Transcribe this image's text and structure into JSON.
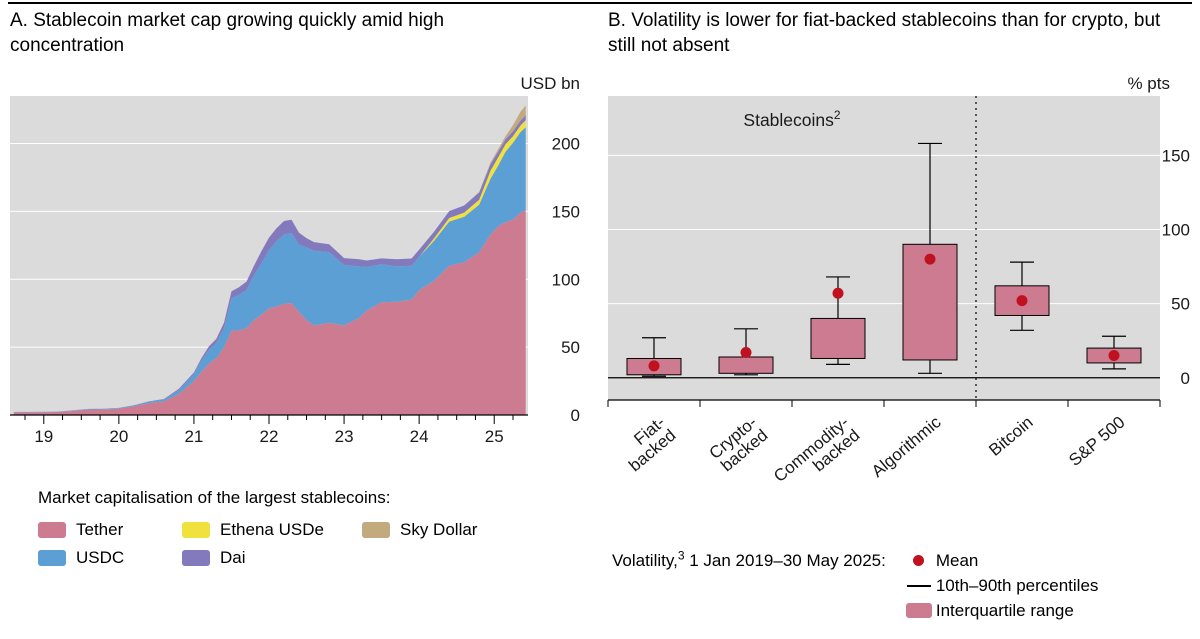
{
  "panels": {
    "a": {
      "title": "A. Stablecoin market cap growing quickly amid high concentration",
      "unit": "USD bn",
      "legend_title": "Market capitalisation of the largest stablecoins:",
      "legend": [
        {
          "label": "Tether",
          "color": "#cd7b90"
        },
        {
          "label": "USDC",
          "color": "#5b9fd4"
        },
        {
          "label": "Ethena USDe",
          "color": "#f0e13c"
        },
        {
          "label": "Dai",
          "color": "#8379bd"
        },
        {
          "label": "Sky Dollar",
          "color": "#c2aa7e"
        }
      ]
    },
    "b": {
      "title": "B. Volatility is lower for fiat-backed stablecoins than for crypto, but still not absent",
      "unit": "% pts",
      "legend_prefix": "Volatility,",
      "legend_sup": "3",
      "legend_suffix": " 1 Jan 2019–30 May 2025:",
      "legend_items": [
        {
          "marker": "mean-dot",
          "label": "Mean"
        },
        {
          "marker": "percentile-line",
          "label": "10th–90th percentiles"
        },
        {
          "marker": "iqr-box",
          "label": "Interquartile range"
        }
      ]
    }
  },
  "chart_data": [
    {
      "type": "area",
      "stacked": true,
      "title": "Stablecoin market cap growing quickly amid high concentration",
      "ylabel": "USD bn",
      "ylim": [
        0,
        235
      ],
      "yticks": [
        0,
        50,
        100,
        150,
        200
      ],
      "xlim": [
        2018.55,
        2025.45
      ],
      "xticks": [
        {
          "pos": 2019,
          "label": "19"
        },
        {
          "pos": 2020,
          "label": "20"
        },
        {
          "pos": 2021,
          "label": "21"
        },
        {
          "pos": 2022,
          "label": "22"
        },
        {
          "pos": 2023,
          "label": "23"
        },
        {
          "pos": 2024,
          "label": "24"
        },
        {
          "pos": 2025,
          "label": "25"
        }
      ],
      "x": [
        2018.6,
        2018.8,
        2019.0,
        2019.2,
        2019.4,
        2019.6,
        2019.8,
        2020.0,
        2020.2,
        2020.4,
        2020.6,
        2020.8,
        2021.0,
        2021.1,
        2021.2,
        2021.3,
        2021.4,
        2021.5,
        2021.6,
        2021.7,
        2021.8,
        2021.9,
        2022.0,
        2022.1,
        2022.2,
        2022.3,
        2022.4,
        2022.5,
        2022.6,
        2022.8,
        2023.0,
        2023.2,
        2023.3,
        2023.5,
        2023.7,
        2023.9,
        2024.0,
        2024.2,
        2024.4,
        2024.6,
        2024.8,
        2024.95,
        2025.05,
        2025.15,
        2025.25,
        2025.35,
        2025.42
      ],
      "series": [
        {
          "name": "Tether",
          "color": "#cd7b90",
          "values": [
            2,
            2,
            2,
            2.2,
            3,
            4,
            4.1,
            4.6,
            6.4,
            8.8,
            10,
            15.7,
            25,
            32,
            38,
            42,
            50,
            62,
            62.5,
            64,
            70,
            74,
            78.5,
            80,
            82,
            82.5,
            76,
            70,
            66,
            68,
            66,
            71.5,
            77,
            83,
            83.5,
            85,
            92,
            99,
            110,
            112.5,
            120,
            133,
            139,
            142,
            144,
            149,
            151
          ]
        },
        {
          "name": "USDC",
          "color": "#5b9fd4",
          "values": [
            0.2,
            0.25,
            0.3,
            0.3,
            0.35,
            0.4,
            0.45,
            0.5,
            0.7,
            1,
            1.4,
            2.8,
            5,
            8,
            10,
            11,
            14,
            24,
            26,
            28,
            33,
            38,
            43,
            48,
            51,
            51.5,
            49.5,
            53.5,
            55,
            52,
            44.5,
            38,
            32,
            28,
            26,
            25,
            24.5,
            29.5,
            32.5,
            33.5,
            35,
            41,
            44.5,
            52,
            56.5,
            59.5,
            61
          ]
        },
        {
          "name": "Ethena USDe",
          "color": "#f0e13c",
          "values": [
            0,
            0,
            0,
            0,
            0,
            0,
            0,
            0,
            0,
            0,
            0,
            0,
            0,
            0,
            0,
            0,
            0,
            0,
            0,
            0,
            0,
            0,
            0,
            0,
            0,
            0,
            0,
            0,
            0,
            0,
            0,
            0,
            0,
            0,
            0,
            0,
            0,
            1.8,
            2.6,
            3.1,
            3.6,
            5.9,
            6.1,
            5.4,
            4.9,
            4.8,
            5.2
          ]
        },
        {
          "name": "Dai",
          "color": "#8379bd",
          "values": [
            0.05,
            0.06,
            0.08,
            0.08,
            0.09,
            0.1,
            0.1,
            0.12,
            0.12,
            0.2,
            0.4,
            0.9,
            1.3,
            1.8,
            2.5,
            3.2,
            4,
            5.2,
            5.6,
            6.3,
            7,
            8.8,
            9.2,
            9.6,
            9.9,
            9.8,
            8.7,
            6.8,
            6.4,
            5.8,
            5.1,
            5.2,
            4.8,
            4.4,
            5.3,
            5.3,
            5.3,
            4.9,
            5.1,
            5.2,
            5.3,
            4.8,
            4.2,
            3.7,
            3.6,
            3.6,
            3.6
          ]
        },
        {
          "name": "Sky Dollar",
          "color": "#c2aa7e",
          "values": [
            0,
            0,
            0,
            0,
            0,
            0,
            0,
            0,
            0,
            0,
            0,
            0,
            0,
            0,
            0,
            0,
            0,
            0,
            0,
            0,
            0,
            0,
            0,
            0,
            0,
            0,
            0,
            0,
            0,
            0,
            0,
            0,
            0,
            0,
            0,
            0,
            0,
            0,
            0,
            0,
            0.5,
            1.3,
            1.7,
            2.2,
            4.5,
            6.5,
            7.2
          ]
        }
      ]
    },
    {
      "type": "box",
      "title": "Volatility is lower for fiat-backed stablecoins than for crypto, but still not absent",
      "ylabel": "% pts",
      "ylim": [
        -15,
        190
      ],
      "yticks": [
        0,
        50,
        100,
        150
      ],
      "group_label": "Stablecoins",
      "group_label_sup": "2",
      "group_span": [
        0,
        3
      ],
      "separator_after_index": 3,
      "categories": [
        "Fiat-backed",
        "Crypto-backed",
        "Commodity-backed",
        "Algorithmic",
        "Bitcoin",
        "S&P 500"
      ],
      "label_lines": [
        [
          "Fiat-",
          "backed"
        ],
        [
          "Crypto-",
          "backed"
        ],
        [
          "Commodity-",
          "backed"
        ],
        [
          "Algorithmic"
        ],
        [
          "Bitcoin"
        ],
        [
          "S&P 500"
        ]
      ],
      "boxes": [
        {
          "category": "Fiat-backed",
          "p10": 1,
          "q1": 2,
          "mean": 8,
          "q3": 13,
          "p90": 27
        },
        {
          "category": "Crypto-backed",
          "p10": 2,
          "q1": 3,
          "mean": 17,
          "q3": 14,
          "p90": 33
        },
        {
          "category": "Commodity-backed",
          "p10": 9,
          "q1": 13,
          "mean": 57,
          "q3": 40,
          "p90": 68
        },
        {
          "category": "Algorithmic",
          "p10": 3,
          "q1": 12,
          "mean": 80,
          "q3": 90,
          "p90": 158
        },
        {
          "category": "Bitcoin",
          "p10": 32,
          "q1": 42,
          "mean": 52,
          "q3": 62,
          "p90": 78
        },
        {
          "category": "S&P 500",
          "p10": 6,
          "q1": 10,
          "mean": 15,
          "q3": 20,
          "p90": 28
        }
      ],
      "colors": {
        "box_fill": "#cd7b90",
        "box_border": "#000000",
        "mean_dot": "#bf1120"
      }
    }
  ]
}
